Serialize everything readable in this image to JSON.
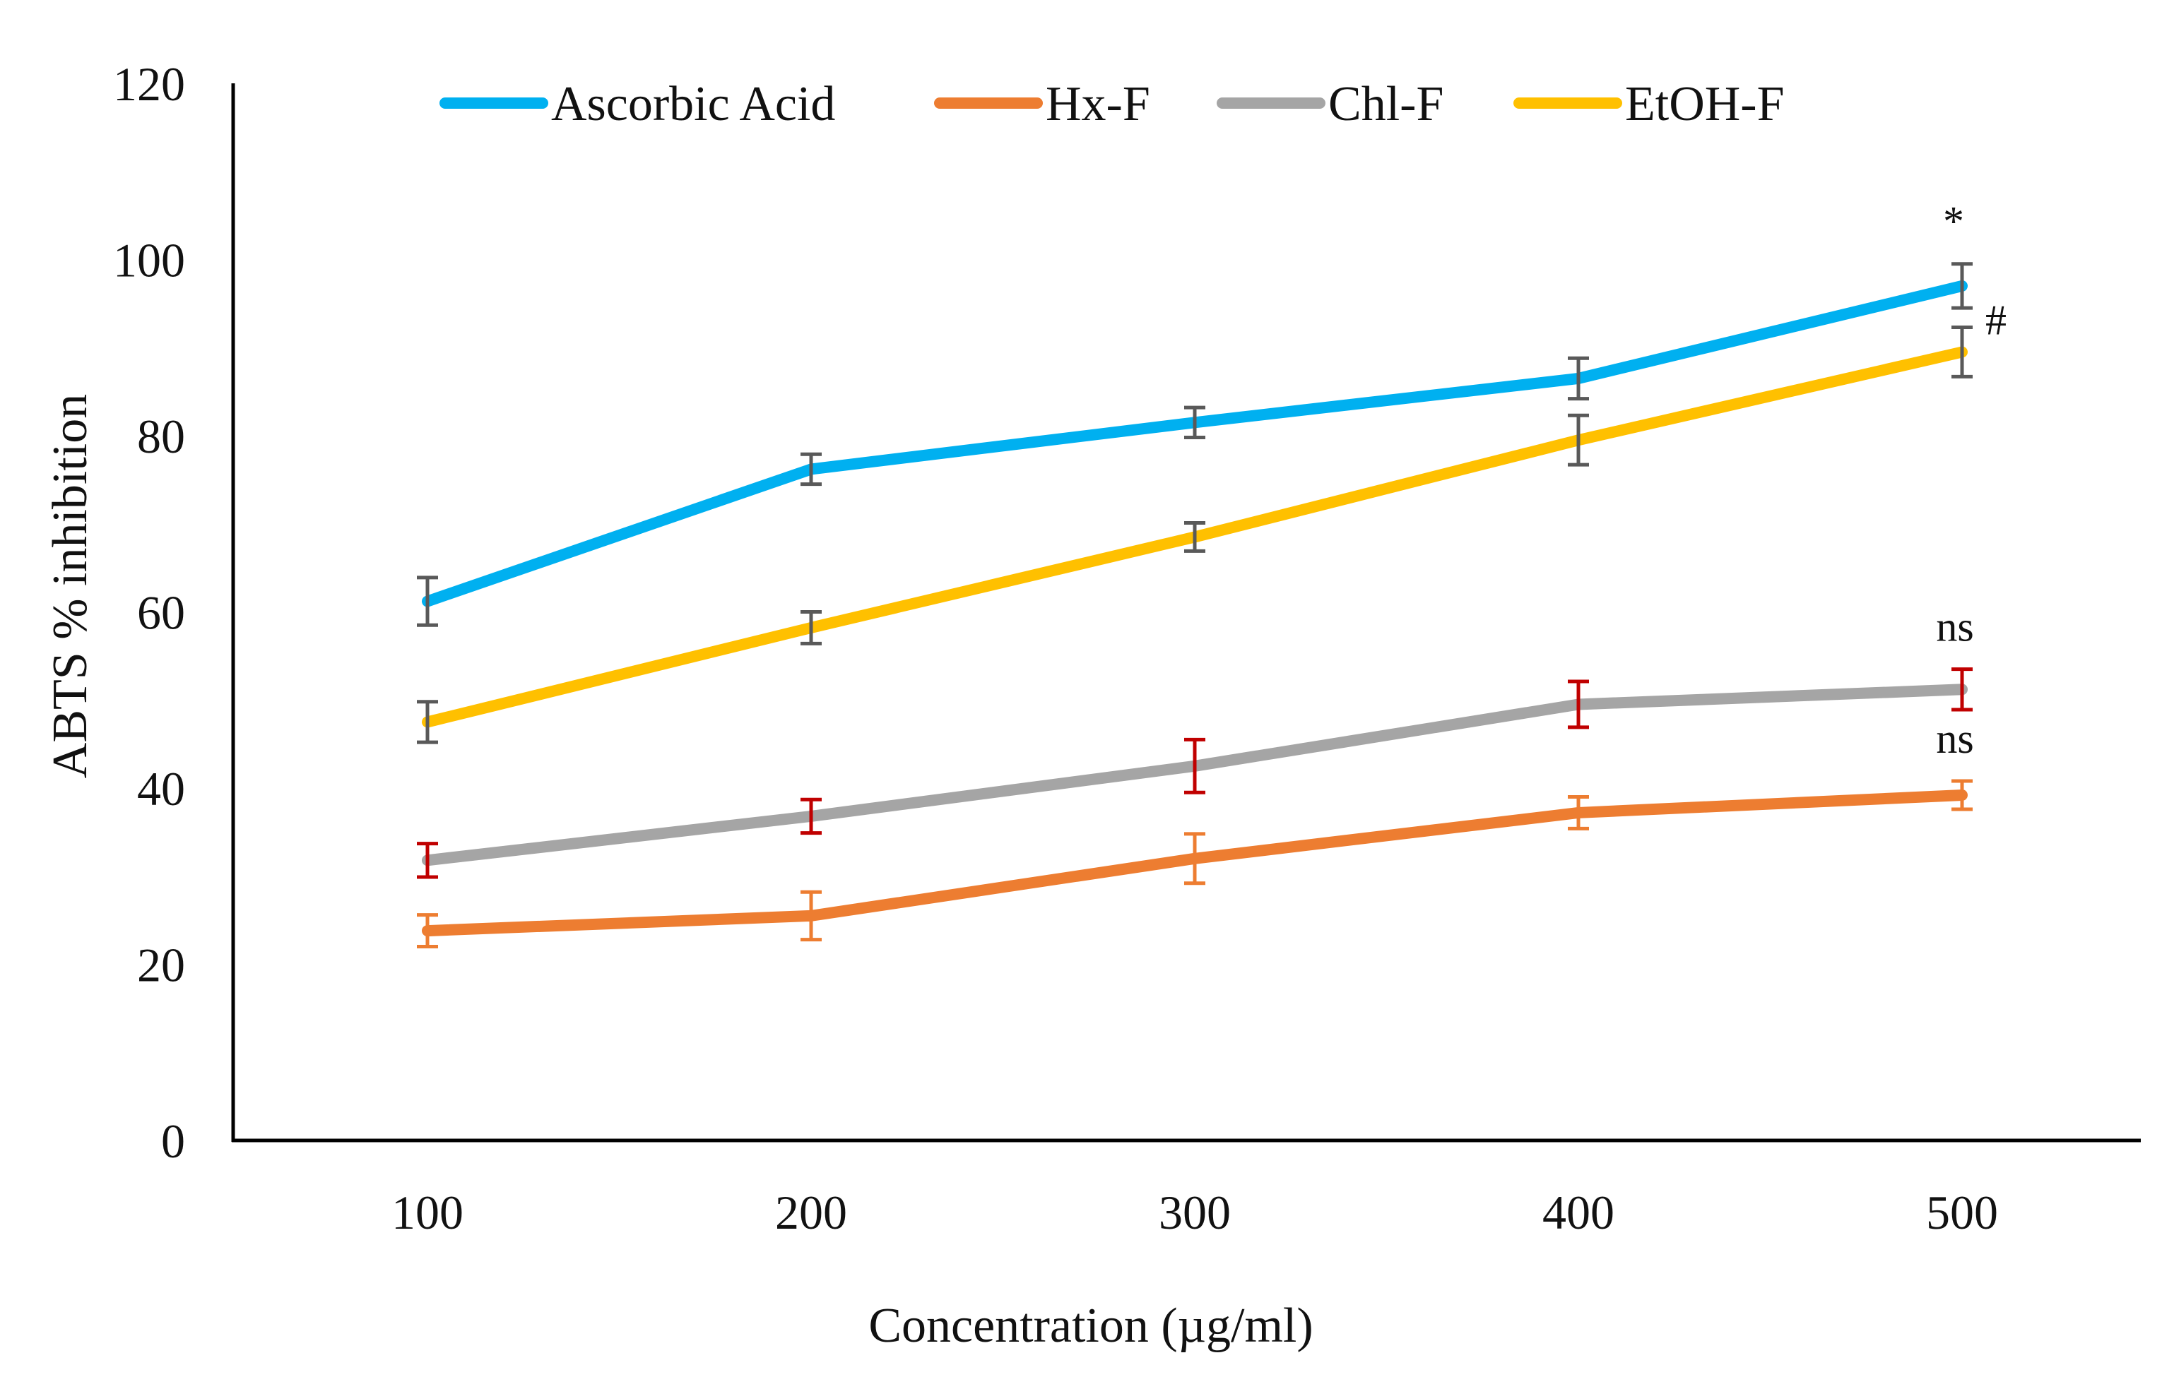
{
  "chart_data": {
    "type": "line",
    "title": "",
    "xlabel": "Concentration (µg/ml)",
    "ylabel": "ABTS % inhibition",
    "categories": [
      "100",
      "200",
      "300",
      "400",
      "500"
    ],
    "ylim": [
      0,
      120
    ],
    "yticks": [
      "0",
      "20",
      "40",
      "60",
      "80",
      "100",
      "120"
    ],
    "grid": false,
    "legend_position": "top",
    "series": [
      {
        "name": "Ascorbic Acid",
        "color": "#00B0F0",
        "error_color": "#595959",
        "values": [
          61.2,
          76.2,
          81.5,
          86.5,
          97.0
        ],
        "errors": [
          2.7,
          1.7,
          1.7,
          2.3,
          2.5
        ]
      },
      {
        "name": "Hx-F",
        "color": "#ED7D31",
        "error_color": "#ED7D31",
        "values": [
          23.8,
          25.5,
          32.0,
          37.2,
          39.2
        ],
        "errors": [
          1.8,
          2.7,
          2.8,
          1.8,
          1.6
        ]
      },
      {
        "name": "Chl-F",
        "color": "#A5A5A5",
        "error_color": "#C00000",
        "values": [
          31.8,
          36.8,
          42.5,
          49.5,
          51.2
        ],
        "errors": [
          1.9,
          1.9,
          3.0,
          2.6,
          2.3
        ]
      },
      {
        "name": "EtOH-F",
        "color": "#FFC000",
        "error_color": "#595959",
        "values": [
          47.5,
          58.2,
          68.5,
          79.5,
          89.5
        ],
        "errors": [
          2.3,
          1.8,
          1.6,
          2.8,
          2.8
        ]
      }
    ],
    "annotations": [
      {
        "text": "*",
        "series": "Ascorbic Acid",
        "category": "500"
      },
      {
        "text": "#",
        "series": "EtOH-F",
        "category": "500"
      },
      {
        "text": "ns",
        "series": "Chl-F",
        "category": "500"
      },
      {
        "text": "ns",
        "series": "Hx-F",
        "category": "500"
      }
    ]
  }
}
